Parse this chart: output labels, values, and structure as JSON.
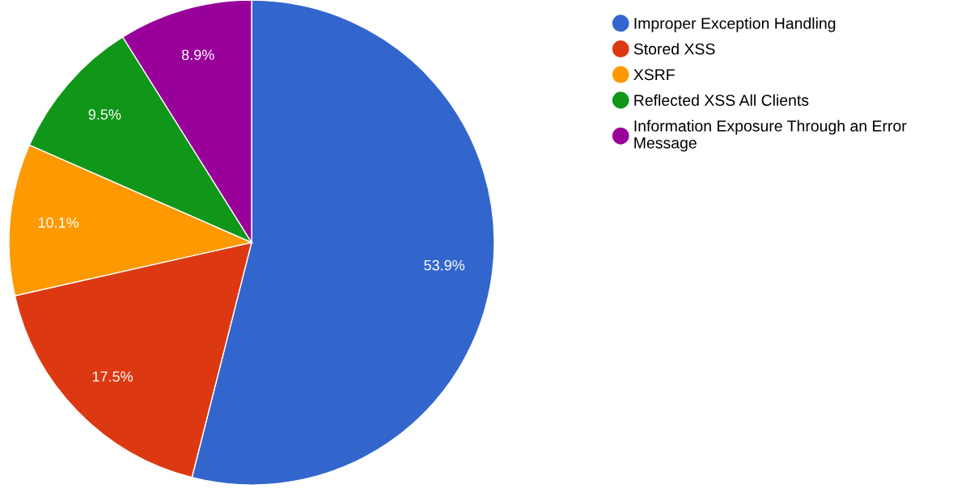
{
  "chart_data": {
    "type": "pie",
    "categories": [
      "Improper Exception Handling",
      "Stored XSS",
      "XSRF",
      "Reflected XSS All Clients",
      "Information Exposure Through an Error Message"
    ],
    "values": [
      53.9,
      17.5,
      10.1,
      9.5,
      8.9
    ],
    "value_labels": [
      "53.9%",
      "17.5%",
      "10.1%",
      "9.5%",
      "8.9%"
    ],
    "colors": [
      "#3366cc",
      "#dc3912",
      "#ff9900",
      "#109618",
      "#990099"
    ],
    "legend": "top right"
  }
}
